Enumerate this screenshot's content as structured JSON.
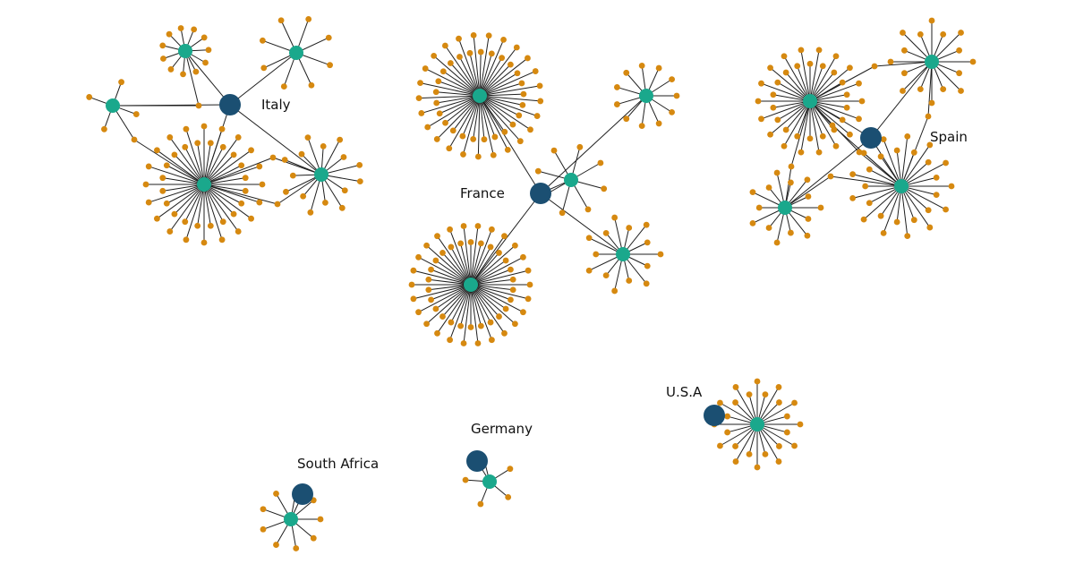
{
  "colors": {
    "country": "#1b4f72",
    "hub": "#1aa88c",
    "leaf": "#d68910",
    "edge": "#1f1f1f",
    "background": "#ffffff"
  },
  "legend": [],
  "countries": [
    {
      "id": "italy",
      "label": "Italy"
    },
    {
      "id": "france",
      "label": "France"
    },
    {
      "id": "spain",
      "label": "Spain"
    },
    {
      "id": "usa",
      "label": "U.S.A"
    },
    {
      "id": "germany",
      "label": "Germany"
    },
    {
      "id": "south_africa",
      "label": "South Africa"
    }
  ],
  "hubs": [
    {
      "id": "it1",
      "country": "italy",
      "leaves": 4
    },
    {
      "id": "it2",
      "country": "italy",
      "leaves": 11
    },
    {
      "id": "it3",
      "country": "italy",
      "leaves": 8
    },
    {
      "id": "it4",
      "country": "italy",
      "leaves": 40
    },
    {
      "id": "it5",
      "country": "italy",
      "leaves": 15
    },
    {
      "id": "fr1",
      "country": "france",
      "leaves": 50
    },
    {
      "id": "fr2",
      "country": "france",
      "leaves": 11
    },
    {
      "id": "fr3",
      "country": "france",
      "leaves": 8
    },
    {
      "id": "fr4",
      "country": "france",
      "leaves": 52
    },
    {
      "id": "fr5",
      "country": "france",
      "leaves": 14
    },
    {
      "id": "es1",
      "country": "spain",
      "leaves": 16
    },
    {
      "id": "es2",
      "country": "spain",
      "leaves": 36
    },
    {
      "id": "es3",
      "country": "spain",
      "leaves": 26
    },
    {
      "id": "es4",
      "country": "spain",
      "leaves": 14
    },
    {
      "id": "us1",
      "country": "usa",
      "leaves": 24
    },
    {
      "id": "de1",
      "country": "germany",
      "leaves": 5
    },
    {
      "id": "za1",
      "country": "south_africa",
      "leaves": 9
    }
  ]
}
